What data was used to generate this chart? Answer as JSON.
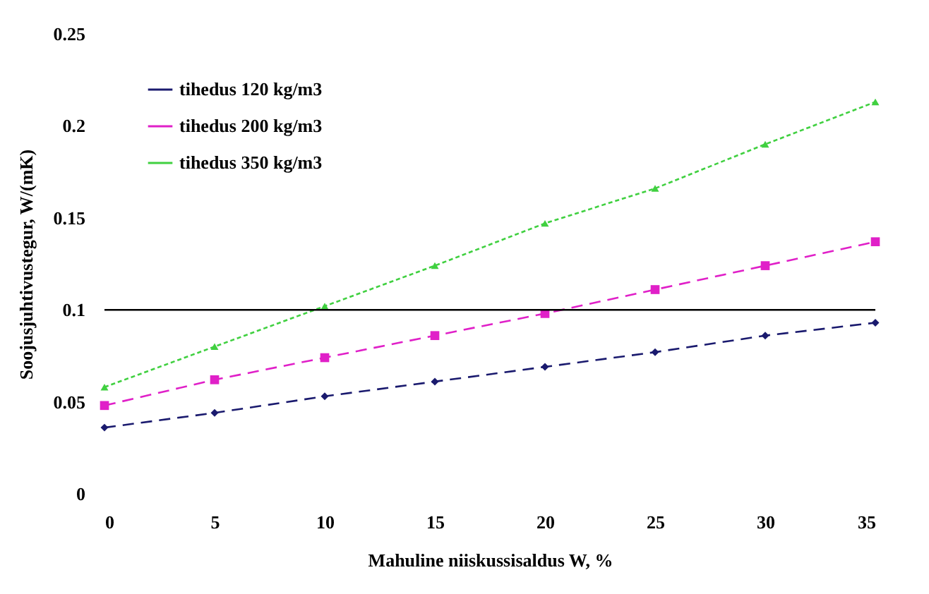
{
  "chart_data": {
    "type": "line",
    "xlabel": "Mahuline niiskussisaldus W, %",
    "ylabel": "Soojusjuhtivustegur, W/(mK)",
    "x": [
      0,
      5,
      10,
      15,
      20,
      25,
      30,
      35
    ],
    "series": [
      {
        "name": "tihedus 120 kg/m3",
        "color": "#1a1a6e",
        "marker": "diamond",
        "line_style": "dashed",
        "values": [
          0.036,
          0.044,
          0.053,
          0.061,
          0.069,
          0.077,
          0.086,
          0.093
        ]
      },
      {
        "name": "tihedus 200 kg/m3",
        "color": "#e020c8",
        "marker": "square",
        "line_style": "dashed",
        "values": [
          0.048,
          0.062,
          0.074,
          0.086,
          0.098,
          0.111,
          0.124,
          0.137
        ]
      },
      {
        "name": "tihedus 350 kg/m3",
        "color": "#40d040",
        "marker": "triangle",
        "line_style": "dotted",
        "values": [
          0.058,
          0.08,
          0.102,
          0.124,
          0.147,
          0.166,
          0.19,
          0.213
        ]
      }
    ],
    "xlim": [
      0,
      35
    ],
    "xticks": [
      0,
      5,
      10,
      15,
      20,
      25,
      30,
      35
    ],
    "ylim": [
      0,
      0.25
    ],
    "yticks": [
      0,
      0.05,
      0.1,
      0.15,
      0.2,
      0.25
    ],
    "ref_lines": [
      {
        "axis": "y",
        "value": 0.1
      }
    ],
    "grid": false,
    "legend": "top left"
  }
}
